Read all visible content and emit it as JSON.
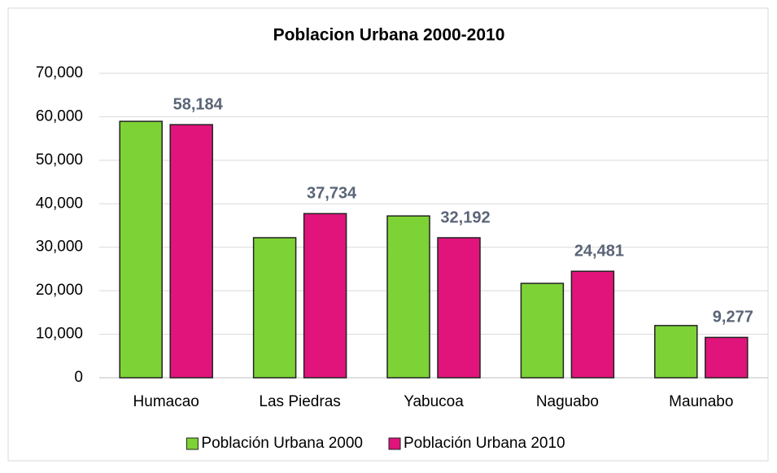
{
  "chart_data": {
    "type": "bar",
    "title": "Poblacion Urbana 2000-2010",
    "categories": [
      "Humacao",
      "Las Piedras",
      "Yabucoa",
      "Naguabo",
      "Maunabo"
    ],
    "series": [
      {
        "name": "Población Urbana 2000",
        "color": "#7dd335",
        "values": [
          58950,
          32200,
          37200,
          21700,
          12000
        ]
      },
      {
        "name": "Población Urbana 2010",
        "color": "#e0147a",
        "values": [
          58184,
          37734,
          32192,
          24481,
          9277
        ],
        "value_labels": [
          "58,184",
          "37,734",
          "32,192",
          "24,481",
          "9,277"
        ]
      }
    ],
    "ylim": [
      0,
      70000
    ],
    "yticks": [
      0,
      {
        "value": 10000,
        "label": "10,000"
      },
      {
        "value": 20000,
        "label": "20,000"
      },
      {
        "value": 30000,
        "label": "30,000"
      },
      {
        "value": 40000,
        "label": "40,000"
      },
      {
        "value": 50000,
        "label": "50,000"
      },
      {
        "value": 60000,
        "label": "60,000"
      },
      {
        "value": 70000,
        "label": "70,000"
      }
    ],
    "grid": true,
    "legend": "bottom"
  }
}
